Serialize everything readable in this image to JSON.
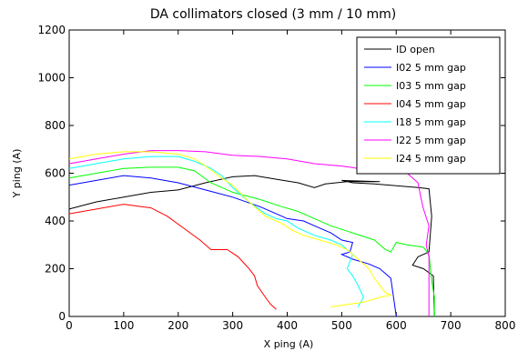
{
  "chart_data": {
    "type": "line",
    "title": "DA collimators closed (3 mm / 10 mm)",
    "xlabel": "X ping (A)",
    "ylabel": "Y ping (A)",
    "xlim": [
      0,
      800
    ],
    "ylim": [
      0,
      1200
    ],
    "xticks": [
      "0",
      "100",
      "200",
      "300",
      "400",
      "500",
      "600",
      "700",
      "800"
    ],
    "yticks": [
      "0",
      "200",
      "400",
      "600",
      "800",
      "1000",
      "1200"
    ],
    "grid": false,
    "legend_position": "top-right",
    "series": [
      {
        "name": "ID open",
        "color": "#000000",
        "points": [
          [
            0,
            450
          ],
          [
            50,
            480
          ],
          [
            100,
            500
          ],
          [
            150,
            520
          ],
          [
            200,
            530
          ],
          [
            250,
            560
          ],
          [
            300,
            585
          ],
          [
            340,
            590
          ],
          [
            380,
            575
          ],
          [
            420,
            560
          ],
          [
            450,
            540
          ],
          [
            470,
            555
          ],
          [
            490,
            560
          ],
          [
            510,
            565
          ],
          [
            550,
            565
          ],
          [
            570,
            565
          ],
          [
            500,
            570
          ],
          [
            520,
            560
          ],
          [
            560,
            555
          ],
          [
            600,
            548
          ],
          [
            640,
            540
          ],
          [
            660,
            535
          ],
          [
            665,
            420
          ],
          [
            660,
            270
          ],
          [
            640,
            250
          ],
          [
            630,
            215
          ],
          [
            650,
            200
          ],
          [
            668,
            170
          ],
          [
            670,
            0
          ]
        ]
      },
      {
        "name": "I02 5 mm gap",
        "color": "#0000ff",
        "points": [
          [
            0,
            550
          ],
          [
            50,
            570
          ],
          [
            100,
            590
          ],
          [
            150,
            580
          ],
          [
            200,
            560
          ],
          [
            250,
            530
          ],
          [
            300,
            500
          ],
          [
            350,
            460
          ],
          [
            380,
            430
          ],
          [
            400,
            410
          ],
          [
            430,
            400
          ],
          [
            450,
            380
          ],
          [
            480,
            350
          ],
          [
            500,
            320
          ],
          [
            520,
            310
          ],
          [
            515,
            270
          ],
          [
            500,
            260
          ],
          [
            520,
            240
          ],
          [
            550,
            220
          ],
          [
            570,
            200
          ],
          [
            590,
            160
          ],
          [
            600,
            0
          ]
        ]
      },
      {
        "name": "I03 5 mm gap",
        "color": "#00ff00",
        "points": [
          [
            0,
            580
          ],
          [
            50,
            600
          ],
          [
            100,
            620
          ],
          [
            150,
            625
          ],
          [
            200,
            625
          ],
          [
            230,
            610
          ],
          [
            260,
            560
          ],
          [
            300,
            520
          ],
          [
            350,
            490
          ],
          [
            390,
            460
          ],
          [
            420,
            440
          ],
          [
            450,
            410
          ],
          [
            480,
            380
          ],
          [
            520,
            350
          ],
          [
            560,
            320
          ],
          [
            580,
            280
          ],
          [
            590,
            270
          ],
          [
            600,
            310
          ],
          [
            620,
            300
          ],
          [
            650,
            290
          ],
          [
            660,
            260
          ],
          [
            665,
            150
          ],
          [
            670,
            80
          ],
          [
            670,
            0
          ]
        ]
      },
      {
        "name": "I04 5 mm gap",
        "color": "#ff0000",
        "points": [
          [
            0,
            430
          ],
          [
            50,
            450
          ],
          [
            100,
            470
          ],
          [
            150,
            455
          ],
          [
            180,
            420
          ],
          [
            210,
            370
          ],
          [
            240,
            320
          ],
          [
            260,
            280
          ],
          [
            290,
            280
          ],
          [
            310,
            250
          ],
          [
            330,
            200
          ],
          [
            340,
            170
          ],
          [
            345,
            130
          ],
          [
            360,
            80
          ],
          [
            370,
            50
          ],
          [
            380,
            30
          ]
        ]
      },
      {
        "name": "I18 5 mm gap",
        "color": "#00ffff",
        "points": [
          [
            0,
            620
          ],
          [
            50,
            640
          ],
          [
            100,
            660
          ],
          [
            150,
            670
          ],
          [
            200,
            670
          ],
          [
            230,
            650
          ],
          [
            260,
            620
          ],
          [
            280,
            590
          ],
          [
            300,
            540
          ],
          [
            330,
            480
          ],
          [
            360,
            430
          ],
          [
            380,
            410
          ],
          [
            400,
            400
          ],
          [
            420,
            370
          ],
          [
            450,
            340
          ],
          [
            480,
            320
          ],
          [
            500,
            300
          ],
          [
            520,
            260
          ],
          [
            510,
            200
          ],
          [
            520,
            170
          ],
          [
            530,
            130
          ],
          [
            540,
            80
          ],
          [
            530,
            40
          ]
        ]
      },
      {
        "name": "I22 5 mm gap",
        "color": "#ff00ff",
        "points": [
          [
            0,
            640
          ],
          [
            50,
            660
          ],
          [
            100,
            680
          ],
          [
            150,
            695
          ],
          [
            200,
            695
          ],
          [
            250,
            690
          ],
          [
            300,
            675
          ],
          [
            350,
            670
          ],
          [
            400,
            660
          ],
          [
            450,
            640
          ],
          [
            500,
            630
          ],
          [
            530,
            620
          ],
          [
            550,
            640
          ],
          [
            580,
            620
          ],
          [
            620,
            600
          ],
          [
            640,
            560
          ],
          [
            645,
            500
          ],
          [
            650,
            450
          ],
          [
            660,
            380
          ],
          [
            655,
            300
          ],
          [
            660,
            250
          ],
          [
            660,
            0
          ]
        ]
      },
      {
        "name": "I24 5 mm gap",
        "color": "#ffff00",
        "points": [
          [
            0,
            660
          ],
          [
            50,
            680
          ],
          [
            100,
            690
          ],
          [
            150,
            690
          ],
          [
            200,
            680
          ],
          [
            230,
            660
          ],
          [
            250,
            630
          ],
          [
            280,
            580
          ],
          [
            300,
            550
          ],
          [
            330,
            480
          ],
          [
            360,
            420
          ],
          [
            390,
            390
          ],
          [
            410,
            360
          ],
          [
            430,
            340
          ],
          [
            460,
            320
          ],
          [
            490,
            300
          ],
          [
            510,
            280
          ],
          [
            530,
            240
          ],
          [
            550,
            200
          ],
          [
            560,
            160
          ],
          [
            570,
            130
          ],
          [
            580,
            100
          ],
          [
            590,
            90
          ],
          [
            570,
            80
          ],
          [
            540,
            60
          ],
          [
            510,
            50
          ],
          [
            480,
            40
          ]
        ]
      }
    ]
  }
}
